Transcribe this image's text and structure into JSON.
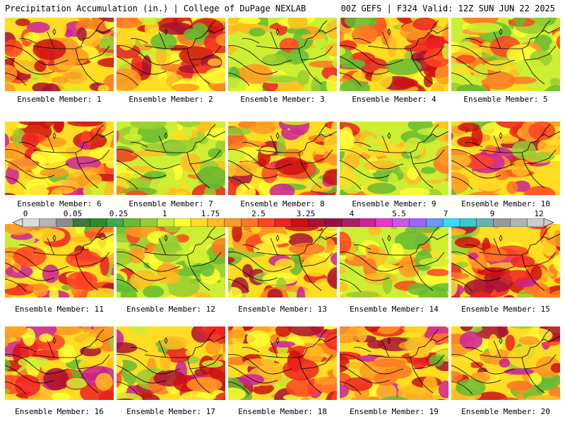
{
  "header": {
    "title_left": "Precipitation Accumulation (in.) | College of DuPage NEXLAB",
    "title_right": "00Z GEFS | F324 Valid: 12Z SUN JUN 22 2025"
  },
  "colorbar": {
    "tick_labels": [
      "0",
      "0.05",
      "0.25",
      "1",
      "1.75",
      "2.5",
      "3.25",
      "4",
      "5.5",
      "7",
      "9",
      "12"
    ],
    "colors": [
      "#dcdcdc",
      "#b4b4b4",
      "#8c8c8c",
      "#3c783c",
      "#2e8b2e",
      "#44a844",
      "#66bb33",
      "#99cc33",
      "#ccee33",
      "#ffff33",
      "#ffdd22",
      "#ffbb22",
      "#ff9922",
      "#ff7722",
      "#ff4422",
      "#ee2222",
      "#cc1111",
      "#aa1133",
      "#991144",
      "#aa2266",
      "#cc2299",
      "#ee33cc",
      "#cc55ee",
      "#9966ff",
      "#6699ff",
      "#33ddff",
      "#33cccc",
      "#66b2b2",
      "#999999",
      "#b2b2b2",
      "#cccccc"
    ]
  },
  "members": [
    {
      "label": "Ensemble Member: 1"
    },
    {
      "label": "Ensemble Member: 2"
    },
    {
      "label": "Ensemble Member: 3"
    },
    {
      "label": "Ensemble Member: 4"
    },
    {
      "label": "Ensemble Member: 5"
    },
    {
      "label": "Ensemble Member: 6"
    },
    {
      "label": "Ensemble Member: 7"
    },
    {
      "label": "Ensemble Member: 8"
    },
    {
      "label": "Ensemble Member: 9"
    },
    {
      "label": "Ensemble Member: 10"
    },
    {
      "label": "Ensemble Member: 11"
    },
    {
      "label": "Ensemble Member: 12"
    },
    {
      "label": "Ensemble Member: 13"
    },
    {
      "label": "Ensemble Member: 14"
    },
    {
      "label": "Ensemble Member: 15"
    },
    {
      "label": "Ensemble Member: 16"
    },
    {
      "label": "Ensemble Member: 17"
    },
    {
      "label": "Ensemble Member: 18"
    },
    {
      "label": "Ensemble Member: 19"
    },
    {
      "label": "Ensemble Member: 20"
    }
  ]
}
